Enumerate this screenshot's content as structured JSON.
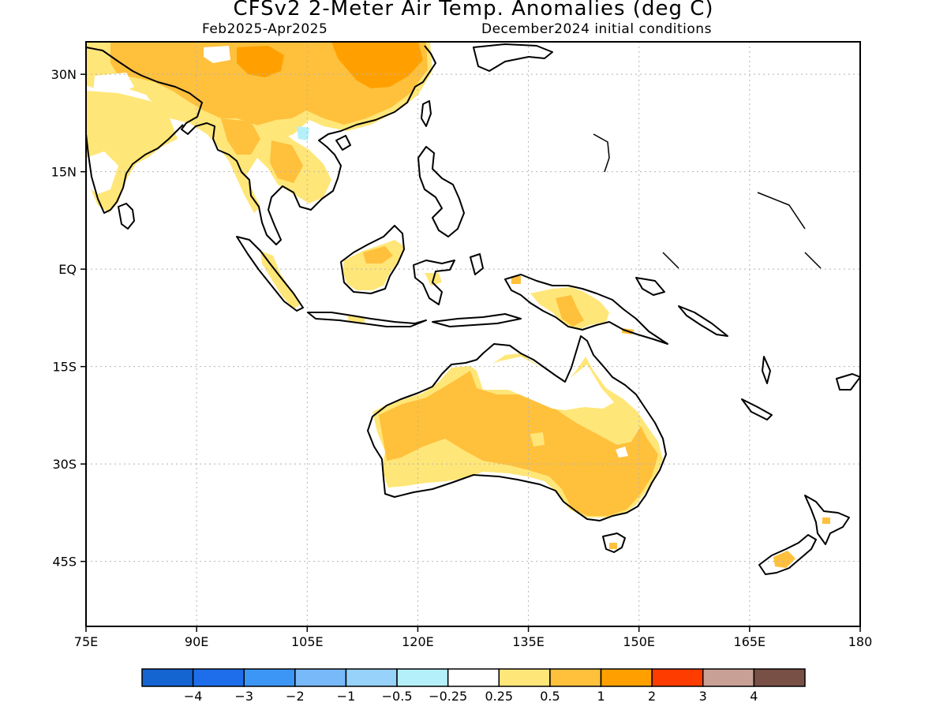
{
  "title": "CFSv2 2-Meter Air Temp. Anomalies (deg C)",
  "subtitle_left": "Feb2025-Apr2025",
  "subtitle_right": "December2024 initial conditions",
  "map": {
    "lon_range": [
      75,
      180
    ],
    "lat_range": [
      -55,
      35
    ],
    "lat_ticks": [
      {
        "value": 30,
        "label": "30N"
      },
      {
        "value": 15,
        "label": "15N"
      },
      {
        "value": 0,
        "label": "EQ"
      },
      {
        "value": -15,
        "label": "15S"
      },
      {
        "value": -30,
        "label": "30S"
      },
      {
        "value": -45,
        "label": "45S"
      }
    ],
    "lon_ticks": [
      {
        "value": 75,
        "label": "75E"
      },
      {
        "value": 90,
        "label": "90E"
      },
      {
        "value": 105,
        "label": "105E"
      },
      {
        "value": 120,
        "label": "120E"
      },
      {
        "value": 135,
        "label": "135E"
      },
      {
        "value": 150,
        "label": "150E"
      },
      {
        "value": 165,
        "label": "165E"
      },
      {
        "value": 180,
        "label": "180"
      }
    ],
    "grid": true
  },
  "colorbar": {
    "colors": [
      "#1464d2",
      "#1e6eeb",
      "#3c96f5",
      "#78b9fa",
      "#96d2fa",
      "#b4f0fa",
      "#ffffff",
      "#ffe678",
      "#ffc03c",
      "#ffa000",
      "#ff3c00",
      "#c8a096",
      "#785046"
    ],
    "labels": [
      "-4",
      "-3",
      "-2",
      "-1",
      "-0.5",
      "-0.25",
      "0.25",
      "0.5",
      "1",
      "2",
      "3",
      "4"
    ]
  },
  "colors": {
    "anom_low": "#ffe678",
    "anom_mid": "#ffc03c",
    "anom_high": "#ffa000",
    "anom_cold": "#b4f0fa",
    "coast": "#000000",
    "grid": "#b4b4b4"
  }
}
